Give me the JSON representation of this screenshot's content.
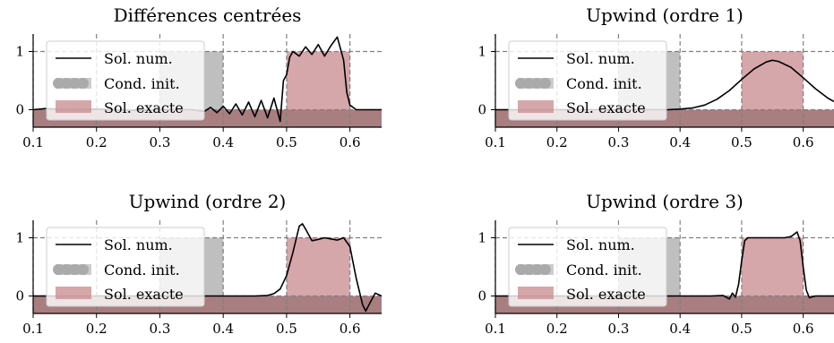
{
  "chart_data": [
    {
      "type": "line",
      "title": "Différences centrées",
      "xlim": [
        0.1,
        0.65
      ],
      "ylim": [
        -0.3,
        1.3
      ],
      "xticks": [
        "0.1",
        "0.2",
        "0.3",
        "0.4",
        "0.5",
        "0.6"
      ],
      "yticks": [
        "0",
        "1"
      ],
      "grid": true,
      "legend": [
        "Sol. num.",
        "Cond. init.",
        "Sol. exacte"
      ],
      "legend_position": "upper-left",
      "colors": {
        "numeric": "#000000",
        "initial": "#aaaaaa",
        "exact": "#c88a8e"
      },
      "initial_condition": {
        "x_start": 0.3,
        "x_end": 0.4,
        "value": 1
      },
      "exact_solution": {
        "x_start": 0.5,
        "x_end": 0.6,
        "value": 1
      },
      "numeric_solution": [
        [
          0.1,
          0.0
        ],
        [
          0.12,
          0.02
        ],
        [
          0.15,
          0.0
        ],
        [
          0.2,
          0.01
        ],
        [
          0.25,
          -0.01
        ],
        [
          0.3,
          0.0
        ],
        [
          0.35,
          0.0
        ],
        [
          0.37,
          -0.03
        ],
        [
          0.38,
          0.04
        ],
        [
          0.39,
          -0.05
        ],
        [
          0.4,
          0.06
        ],
        [
          0.41,
          -0.07
        ],
        [
          0.42,
          0.1
        ],
        [
          0.43,
          -0.09
        ],
        [
          0.44,
          0.13
        ],
        [
          0.45,
          -0.12
        ],
        [
          0.46,
          0.16
        ],
        [
          0.47,
          -0.14
        ],
        [
          0.48,
          0.2
        ],
        [
          0.49,
          -0.2
        ],
        [
          0.495,
          0.5
        ],
        [
          0.5,
          0.6
        ],
        [
          0.505,
          0.9
        ],
        [
          0.51,
          1.0
        ],
        [
          0.52,
          0.92
        ],
        [
          0.53,
          1.08
        ],
        [
          0.54,
          0.95
        ],
        [
          0.55,
          1.12
        ],
        [
          0.56,
          0.92
        ],
        [
          0.57,
          1.1
        ],
        [
          0.58,
          1.25
        ],
        [
          0.59,
          0.85
        ],
        [
          0.595,
          0.3
        ],
        [
          0.6,
          0.08
        ],
        [
          0.61,
          0.0
        ],
        [
          0.65,
          0.0
        ]
      ]
    },
    {
      "type": "line",
      "title": "Upwind (ordre 1)",
      "xlim": [
        0.1,
        0.65
      ],
      "ylim": [
        -0.3,
        1.3
      ],
      "xticks": [
        "0.1",
        "0.2",
        "0.3",
        "0.4",
        "0.5",
        "0.6"
      ],
      "yticks": [
        "0",
        "1"
      ],
      "grid": true,
      "legend": [
        "Sol. num.",
        "Cond. init.",
        "Sol. exacte"
      ],
      "legend_position": "upper-left",
      "colors": {
        "numeric": "#000000",
        "initial": "#aaaaaa",
        "exact": "#c88a8e"
      },
      "initial_condition": {
        "x_start": 0.3,
        "x_end": 0.4,
        "value": 1
      },
      "exact_solution": {
        "x_start": 0.5,
        "x_end": 0.6,
        "value": 1
      },
      "numeric_solution": [
        [
          0.1,
          0.0
        ],
        [
          0.38,
          0.0
        ],
        [
          0.4,
          0.01
        ],
        [
          0.42,
          0.03
        ],
        [
          0.44,
          0.08
        ],
        [
          0.46,
          0.18
        ],
        [
          0.48,
          0.33
        ],
        [
          0.5,
          0.52
        ],
        [
          0.52,
          0.7
        ],
        [
          0.54,
          0.82
        ],
        [
          0.55,
          0.85
        ],
        [
          0.56,
          0.83
        ],
        [
          0.58,
          0.73
        ],
        [
          0.6,
          0.55
        ],
        [
          0.62,
          0.36
        ],
        [
          0.64,
          0.2
        ],
        [
          0.65,
          0.14
        ]
      ]
    },
    {
      "type": "line",
      "title": "Upwind (ordre 2)",
      "xlim": [
        0.1,
        0.65
      ],
      "ylim": [
        -0.3,
        1.3
      ],
      "xticks": [
        "0.1",
        "0.2",
        "0.3",
        "0.4",
        "0.5",
        "0.6"
      ],
      "yticks": [
        "0",
        "1"
      ],
      "grid": true,
      "legend": [
        "Sol. num.",
        "Cond. init.",
        "Sol. exacte"
      ],
      "legend_position": "upper-left",
      "colors": {
        "numeric": "#000000",
        "initial": "#aaaaaa",
        "exact": "#c88a8e"
      },
      "initial_condition": {
        "x_start": 0.3,
        "x_end": 0.4,
        "value": 1
      },
      "exact_solution": {
        "x_start": 0.5,
        "x_end": 0.6,
        "value": 1
      },
      "numeric_solution": [
        [
          0.1,
          0.0
        ],
        [
          0.45,
          0.0
        ],
        [
          0.47,
          0.01
        ],
        [
          0.48,
          0.04
        ],
        [
          0.49,
          0.12
        ],
        [
          0.5,
          0.35
        ],
        [
          0.51,
          0.75
        ],
        [
          0.52,
          1.2
        ],
        [
          0.525,
          1.24
        ],
        [
          0.53,
          1.15
        ],
        [
          0.54,
          0.95
        ],
        [
          0.55,
          0.97
        ],
        [
          0.56,
          1.0
        ],
        [
          0.57,
          0.98
        ],
        [
          0.58,
          0.96
        ],
        [
          0.59,
          1.0
        ],
        [
          0.6,
          0.85
        ],
        [
          0.61,
          0.3
        ],
        [
          0.62,
          -0.15
        ],
        [
          0.625,
          -0.26
        ],
        [
          0.63,
          -0.15
        ],
        [
          0.64,
          0.05
        ],
        [
          0.65,
          0.0
        ]
      ]
    },
    {
      "type": "line",
      "title": "Upwind (ordre 3)",
      "xlim": [
        0.1,
        0.65
      ],
      "ylim": [
        -0.3,
        1.3
      ],
      "xticks": [
        "0.1",
        "0.2",
        "0.3",
        "0.4",
        "0.5",
        "0.6"
      ],
      "yticks": [
        "0",
        "1"
      ],
      "grid": true,
      "legend": [
        "Sol. num.",
        "Cond. init.",
        "Sol. exacte"
      ],
      "legend_position": "upper-left",
      "colors": {
        "numeric": "#000000",
        "initial": "#aaaaaa",
        "exact": "#c88a8e"
      },
      "initial_condition": {
        "x_start": 0.3,
        "x_end": 0.4,
        "value": 1
      },
      "exact_solution": {
        "x_start": 0.5,
        "x_end": 0.6,
        "value": 1
      },
      "numeric_solution": [
        [
          0.1,
          0.0
        ],
        [
          0.45,
          0.0
        ],
        [
          0.47,
          0.01
        ],
        [
          0.48,
          -0.05
        ],
        [
          0.485,
          0.05
        ],
        [
          0.49,
          -0.02
        ],
        [
          0.495,
          0.2
        ],
        [
          0.5,
          0.6
        ],
        [
          0.505,
          0.95
        ],
        [
          0.51,
          1.0
        ],
        [
          0.53,
          1.0
        ],
        [
          0.55,
          1.0
        ],
        [
          0.57,
          1.0
        ],
        [
          0.58,
          1.02
        ],
        [
          0.59,
          1.1
        ],
        [
          0.595,
          0.95
        ],
        [
          0.6,
          0.5
        ],
        [
          0.605,
          0.1
        ],
        [
          0.61,
          -0.03
        ],
        [
          0.62,
          0.0
        ],
        [
          0.65,
          0.0
        ]
      ]
    }
  ]
}
